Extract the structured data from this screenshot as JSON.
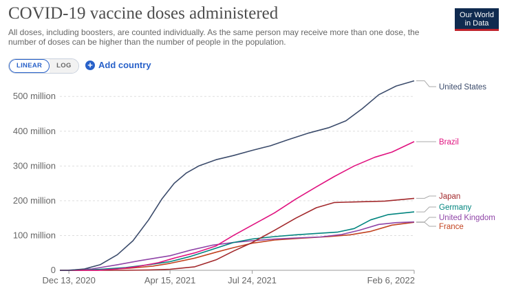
{
  "header": {
    "title": "COVID-19 vaccine doses administered",
    "subtitle": "All doses, including boosters, are counted individually. As the same person may receive more than one dose, the number of doses can be higher than the number of people in the population.",
    "logo_line1": "Our World",
    "logo_line2": "in Data"
  },
  "controls": {
    "linear_label": "LINEAR",
    "log_label": "LOG",
    "add_country_label": "Add country",
    "add_icon": "plus-circle-icon"
  },
  "chart_data": {
    "type": "line",
    "title": "COVID-19 vaccine doses administered",
    "x_ticks": [
      "Dec 13, 2020",
      "Apr 15, 2021",
      "Jul 24, 2021",
      "Feb 6, 2022"
    ],
    "y_ticks": [
      "0",
      "100 million",
      "200 million",
      "300 million",
      "400 million",
      "500 million"
    ],
    "y_tick_values": [
      0,
      100,
      200,
      300,
      400,
      500
    ],
    "ylim": [
      0,
      540
    ],
    "xlim": [
      "2020-12-02",
      "2022-02-06"
    ],
    "grid": "horizontal dashed",
    "legend": "right, labels at line ends",
    "series": [
      {
        "name": "United States",
        "color": "#3b4b6b",
        "x": [
          "2020-12-02",
          "2020-12-13",
          "2021-01-01",
          "2021-01-20",
          "2021-02-10",
          "2021-03-01",
          "2021-03-20",
          "2021-04-05",
          "2021-04-20",
          "2021-05-05",
          "2021-05-20",
          "2021-06-10",
          "2021-07-01",
          "2021-07-24",
          "2021-08-15",
          "2021-09-05",
          "2021-10-01",
          "2021-10-25",
          "2021-11-15",
          "2021-12-05",
          "2021-12-25",
          "2022-01-15",
          "2022-02-06"
        ],
        "y": [
          0,
          0,
          4,
          16,
          45,
          85,
          145,
          205,
          250,
          280,
          300,
          318,
          330,
          345,
          358,
          375,
          395,
          410,
          430,
          465,
          505,
          530,
          545
        ]
      },
      {
        "name": "Brazil",
        "color": "#e0117f",
        "x": [
          "2020-12-02",
          "2021-01-17",
          "2021-02-10",
          "2021-03-05",
          "2021-04-01",
          "2021-04-20",
          "2021-05-15",
          "2021-06-10",
          "2021-07-01",
          "2021-07-24",
          "2021-08-20",
          "2021-09-15",
          "2021-10-10",
          "2021-11-01",
          "2021-11-25",
          "2021-12-20",
          "2022-01-10",
          "2022-02-06"
        ],
        "y": [
          0,
          0,
          4,
          10,
          22,
          35,
          50,
          70,
          100,
          130,
          165,
          205,
          240,
          270,
          300,
          325,
          340,
          370
        ]
      },
      {
        "name": "Japan",
        "color": "#a2282b",
        "x": [
          "2020-12-02",
          "2021-02-17",
          "2021-03-20",
          "2021-04-15",
          "2021-05-15",
          "2021-06-10",
          "2021-07-01",
          "2021-07-24",
          "2021-08-20",
          "2021-09-15",
          "2021-10-10",
          "2021-11-01",
          "2021-12-01",
          "2022-01-01",
          "2022-02-06"
        ],
        "y": [
          0,
          0,
          1,
          3,
          10,
          30,
          55,
          80,
          115,
          150,
          180,
          195,
          197,
          199,
          207
        ]
      },
      {
        "name": "Germany",
        "color": "#00847e",
        "x": [
          "2020-12-02",
          "2020-12-26",
          "2021-01-20",
          "2021-02-20",
          "2021-03-20",
          "2021-04-15",
          "2021-05-10",
          "2021-06-05",
          "2021-07-01",
          "2021-07-24",
          "2021-08-20",
          "2021-09-15",
          "2021-10-10",
          "2021-11-05",
          "2021-11-25",
          "2021-12-15",
          "2022-01-05",
          "2022-02-06"
        ],
        "y": [
          0,
          0,
          3,
          8,
          16,
          25,
          40,
          60,
          80,
          90,
          97,
          102,
          106,
          110,
          120,
          145,
          160,
          168
        ]
      },
      {
        "name": "United Kingdom",
        "color": "#8f44a7",
        "x": [
          "2020-12-02",
          "2020-12-08",
          "2021-01-10",
          "2021-02-10",
          "2021-03-10",
          "2021-04-15",
          "2021-05-10",
          "2021-06-05",
          "2021-07-01",
          "2021-07-24",
          "2021-08-20",
          "2021-09-15",
          "2021-10-15",
          "2021-11-10",
          "2021-12-01",
          "2021-12-25",
          "2022-01-15",
          "2022-02-06"
        ],
        "y": [
          0,
          0,
          4,
          16,
          28,
          42,
          58,
          72,
          80,
          85,
          90,
          93,
          96,
          103,
          115,
          132,
          137,
          139
        ]
      },
      {
        "name": "France",
        "color": "#c2421f",
        "x": [
          "2020-12-02",
          "2020-12-27",
          "2021-01-25",
          "2021-02-25",
          "2021-03-25",
          "2021-04-15",
          "2021-05-15",
          "2021-06-10",
          "2021-07-01",
          "2021-07-24",
          "2021-08-20",
          "2021-09-20",
          "2021-10-25",
          "2021-11-20",
          "2021-12-15",
          "2022-01-10",
          "2022-02-06"
        ],
        "y": [
          0,
          0,
          2,
          6,
          12,
          20,
          35,
          52,
          65,
          78,
          87,
          92,
          97,
          102,
          112,
          130,
          138
        ]
      }
    ]
  }
}
